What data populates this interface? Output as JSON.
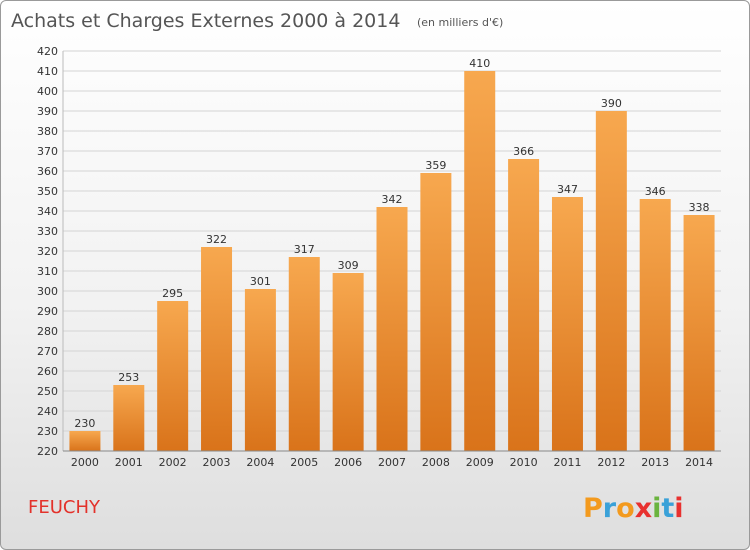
{
  "chart_data": {
    "type": "bar",
    "title": "Achats et Charges Externes 2000 à 2014",
    "subtitle": "(en milliers d'€)",
    "categories": [
      "2000",
      "2001",
      "2002",
      "2003",
      "2004",
      "2005",
      "2006",
      "2007",
      "2008",
      "2009",
      "2010",
      "2011",
      "2012",
      "2013",
      "2014"
    ],
    "values": [
      230,
      253,
      295,
      322,
      301,
      317,
      309,
      342,
      359,
      410,
      366,
      347,
      390,
      346,
      338
    ],
    "ylim": [
      220,
      420
    ],
    "ytick_step": 10,
    "grid": true,
    "bar_color_top": "#f7a84f",
    "bar_color_bottom": "#d9731a",
    "xlabel": "",
    "ylabel": ""
  },
  "location": "FEUCHY",
  "brand": {
    "letters": [
      "P",
      "r",
      "o",
      "x",
      "i",
      "t",
      "i"
    ],
    "colors": [
      "#f39a1e",
      "#3aa1d8",
      "#f39a1e",
      "#e8312f",
      "#6bb43f",
      "#3aa1d8",
      "#e8312f"
    ]
  }
}
